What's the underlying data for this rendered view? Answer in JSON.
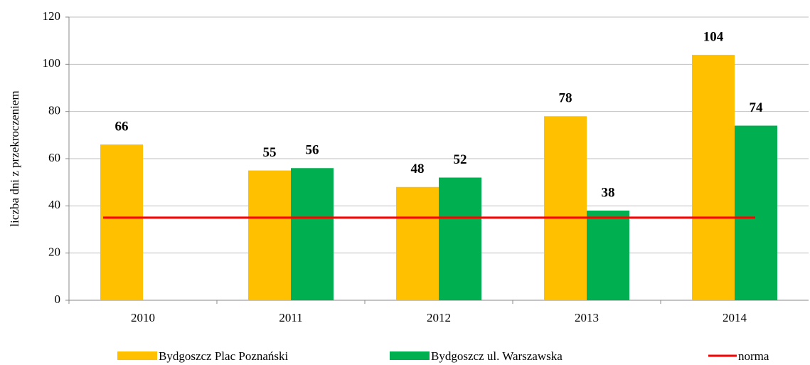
{
  "chart_data": {
    "type": "bar",
    "y_label": "liczba dni z przekroczeniem",
    "categories": [
      "2010",
      "2011",
      "2012",
      "2013",
      "2014"
    ],
    "series": [
      {
        "name": "Bydgoszcz Plac Poznański",
        "color": "#ffc000",
        "values": [
          66,
          55,
          48,
          78,
          104
        ]
      },
      {
        "name": "Bydgoszcz ul. Warszawska",
        "color": "#00b050",
        "values": [
          null,
          56,
          52,
          38,
          74
        ]
      },
      {
        "name": "norma",
        "type": "line",
        "color": "#ff0000",
        "values": [
          35,
          35,
          35,
          35,
          35
        ]
      }
    ],
    "ylim": [
      0,
      120
    ],
    "yticks": [
      0,
      20,
      40,
      60,
      80,
      100,
      120
    ],
    "grid": true,
    "legend": "bottom"
  }
}
